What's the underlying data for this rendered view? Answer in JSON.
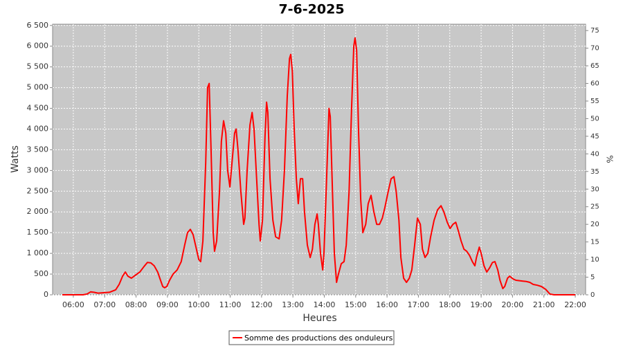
{
  "chart_data": {
    "type": "line",
    "title": "7-6-2025",
    "x_label": "Heures",
    "y_label": "Watts",
    "y2_label": "%",
    "x": [
      5.65,
      6.31,
      6.44,
      6.55,
      6.66,
      6.79,
      6.97,
      7.15,
      7.35,
      7.46,
      7.57,
      7.66,
      7.74,
      7.85,
      7.99,
      8.12,
      8.25,
      8.36,
      8.47,
      8.58,
      8.69,
      8.78,
      8.85,
      8.91,
      8.98,
      9.07,
      9.18,
      9.31,
      9.44,
      9.55,
      9.64,
      9.73,
      9.82,
      9.91,
      10.0,
      10.06,
      10.13,
      10.22,
      10.28,
      10.33,
      10.39,
      10.46,
      10.5,
      10.57,
      10.66,
      10.72,
      10.79,
      10.86,
      10.92,
      10.99,
      11.06,
      11.14,
      11.19,
      11.25,
      11.34,
      11.43,
      11.47,
      11.54,
      11.63,
      11.7,
      11.76,
      11.83,
      11.92,
      11.96,
      12.03,
      12.11,
      12.16,
      12.2,
      12.27,
      12.36,
      12.45,
      12.56,
      12.64,
      12.73,
      12.82,
      12.89,
      12.93,
      12.98,
      13.04,
      13.11,
      13.17,
      13.24,
      13.31,
      13.37,
      13.46,
      13.55,
      13.62,
      13.7,
      13.77,
      13.81,
      13.88,
      13.95,
      13.99,
      14.06,
      14.15,
      14.19,
      14.26,
      14.32,
      14.39,
      14.45,
      14.54,
      14.63,
      14.7,
      14.79,
      14.87,
      14.94,
      14.98,
      15.03,
      15.09,
      15.16,
      15.23,
      15.32,
      15.4,
      15.49,
      15.58,
      15.67,
      15.76,
      15.85,
      15.93,
      16.04,
      16.13,
      16.22,
      16.29,
      16.38,
      16.44,
      16.53,
      16.62,
      16.71,
      16.79,
      16.88,
      16.97,
      17.06,
      17.13,
      17.21,
      17.3,
      17.39,
      17.5,
      17.61,
      17.72,
      17.81,
      17.92,
      18.01,
      18.1,
      18.19,
      18.27,
      18.36,
      18.45,
      18.54,
      18.63,
      18.72,
      18.8,
      18.85,
      18.94,
      19.0,
      19.09,
      19.18,
      19.27,
      19.36,
      19.44,
      19.53,
      19.6,
      19.69,
      19.75,
      19.84,
      19.91,
      20.02,
      20.11,
      20.22,
      20.33,
      20.44,
      20.55,
      20.66,
      20.79,
      20.92,
      21.06,
      21.19,
      21.32,
      22.0
    ],
    "series": [
      {
        "name": "Somme des productions des onduleurs",
        "color": "#ff0000",
        "values": [
          0,
          0,
          20,
          70,
          60,
          40,
          50,
          60,
          120,
          250,
          450,
          550,
          450,
          400,
          480,
          550,
          680,
          780,
          770,
          700,
          550,
          350,
          200,
          170,
          200,
          350,
          500,
          600,
          800,
          1200,
          1500,
          1580,
          1450,
          1150,
          850,
          800,
          1300,
          3200,
          5000,
          5100,
          3500,
          1500,
          1050,
          1300,
          2500,
          3700,
          4200,
          3900,
          3000,
          2600,
          3200,
          3900,
          4000,
          3500,
          2500,
          1700,
          1850,
          3000,
          4100,
          4400,
          4000,
          3000,
          1700,
          1300,
          1800,
          3800,
          4650,
          4400,
          2800,
          1800,
          1400,
          1350,
          1800,
          3000,
          4800,
          5700,
          5800,
          5400,
          4000,
          2800,
          2200,
          2800,
          2800,
          2000,
          1200,
          900,
          1100,
          1700,
          1950,
          1700,
          1000,
          600,
          1000,
          2500,
          4500,
          4300,
          2500,
          1000,
          300,
          500,
          750,
          800,
          1200,
          2500,
          4500,
          6000,
          6200,
          5900,
          4000,
          2300,
          1500,
          1700,
          2200,
          2400,
          2000,
          1700,
          1700,
          1850,
          2100,
          2500,
          2800,
          2850,
          2500,
          1800,
          900,
          400,
          300,
          400,
          600,
          1200,
          1850,
          1700,
          1100,
          900,
          1000,
          1400,
          1800,
          2050,
          2150,
          2000,
          1750,
          1600,
          1700,
          1750,
          1550,
          1300,
          1100,
          1050,
          950,
          800,
          700,
          900,
          1150,
          1000,
          700,
          550,
          650,
          780,
          800,
          600,
          350,
          150,
          200,
          400,
          450,
          380,
          350,
          340,
          330,
          320,
          300,
          250,
          230,
          200,
          130,
          20,
          0,
          0
        ]
      }
    ],
    "xlim": [
      5.34,
      22.33
    ],
    "xticks": [
      {
        "value": 6,
        "label": "06:00"
      },
      {
        "value": 7,
        "label": "07:00"
      },
      {
        "value": 8,
        "label": "08:00"
      },
      {
        "value": 9,
        "label": "09:00"
      },
      {
        "value": 10,
        "label": "10:00"
      },
      {
        "value": 11,
        "label": "11:00"
      },
      {
        "value": 12,
        "label": "12:00"
      },
      {
        "value": 13,
        "label": "13:00"
      },
      {
        "value": 14,
        "label": "14:00"
      },
      {
        "value": 15,
        "label": "15:00"
      },
      {
        "value": 16,
        "label": "16:00"
      },
      {
        "value": 17,
        "label": "17:00"
      },
      {
        "value": 18,
        "label": "18:00"
      },
      {
        "value": 19,
        "label": "19:00"
      },
      {
        "value": 20,
        "label": "20:00"
      },
      {
        "value": 21,
        "label": "21:00"
      },
      {
        "value": 22,
        "label": "22:00"
      }
    ],
    "ylim": [
      0,
      6530
    ],
    "yticks": [
      0,
      500,
      {
        "value": 1000,
        "label": "1 000"
      },
      {
        "value": 1500,
        "label": "1 500"
      },
      {
        "value": 2000,
        "label": "2 000"
      },
      {
        "value": 2500,
        "label": "2 500"
      },
      {
        "value": 3000,
        "label": "3 000"
      },
      {
        "value": 3500,
        "label": "3 500"
      },
      {
        "value": 4000,
        "label": "4 000"
      },
      {
        "value": 4500,
        "label": "4 500"
      },
      {
        "value": 5000,
        "label": "5 000"
      },
      {
        "value": 5500,
        "label": "5 500"
      },
      {
        "value": 6000,
        "label": "6 000"
      },
      {
        "value": 6500,
        "label": "6 500"
      }
    ],
    "y2lim": [
      0,
      76.8
    ],
    "y2ticks": [
      0,
      5,
      10,
      15,
      20,
      25,
      30,
      35,
      40,
      45,
      50,
      55,
      60,
      65,
      70,
      75
    ],
    "grid": true,
    "legend": "bottom"
  }
}
